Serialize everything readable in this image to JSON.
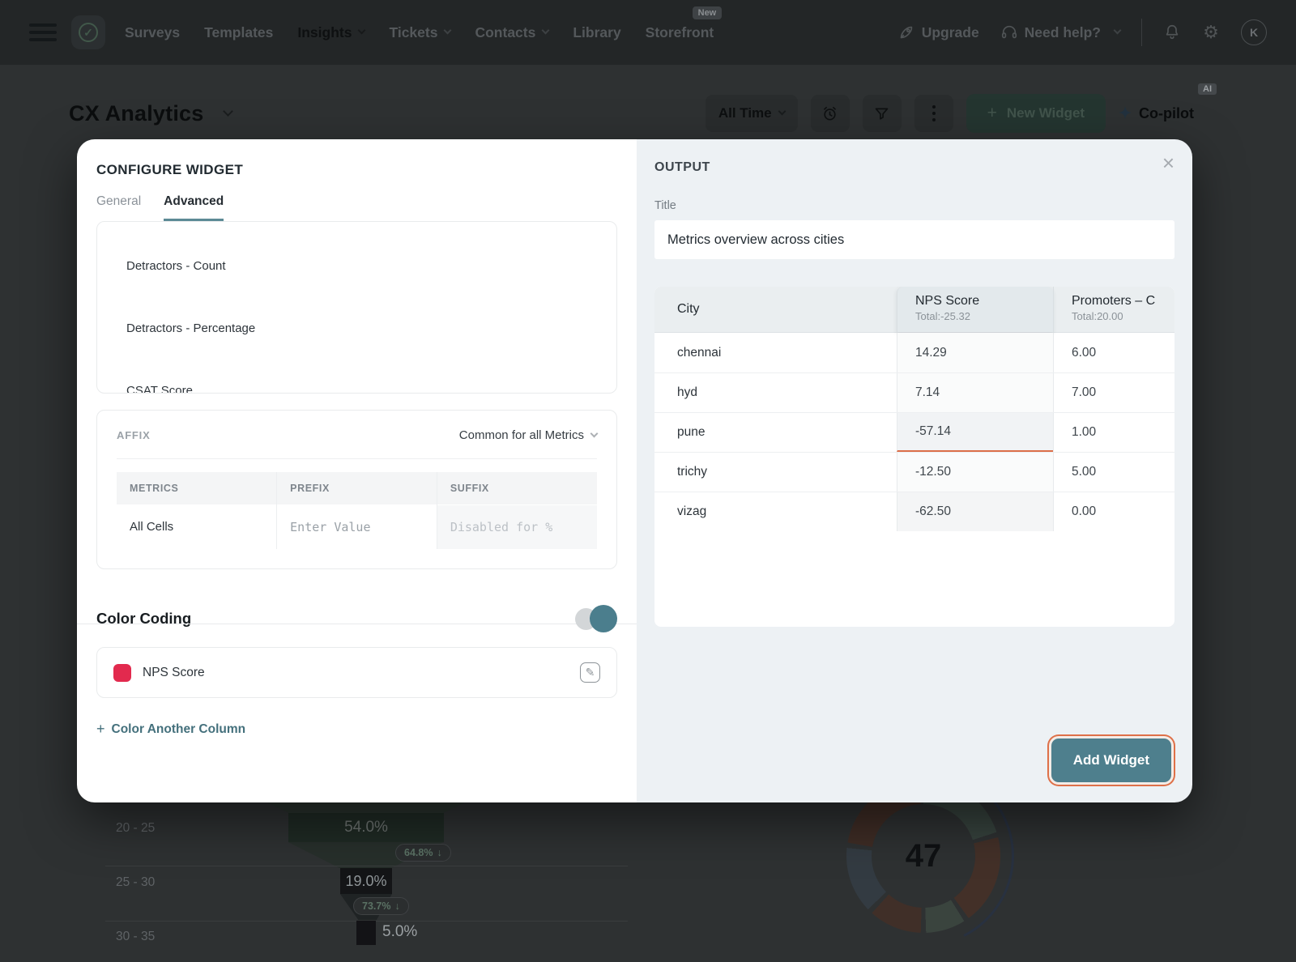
{
  "nav": {
    "items": [
      {
        "label": "Surveys"
      },
      {
        "label": "Templates"
      },
      {
        "label": "Insights",
        "chevron": true,
        "active": true
      },
      {
        "label": "Tickets",
        "chevron": true
      },
      {
        "label": "Contacts",
        "chevron": true
      },
      {
        "label": "Library"
      },
      {
        "label": "Storefront",
        "badge": "New"
      }
    ],
    "upgrade_label": "Upgrade",
    "help_label": "Need help?",
    "avatar_initial": "K"
  },
  "header": {
    "title": "CX Analytics",
    "time_range": "All Time",
    "new_widget_label": "New Widget",
    "copilot_label": "Co-pilot",
    "ai_badge": "AI"
  },
  "modal": {
    "configure": {
      "title": "CONFIGURE WIDGET",
      "tabs": {
        "general": "General",
        "advanced": "Advanced"
      },
      "active_tab": "Advanced",
      "metric_options": [
        "Detractors - Count",
        "Detractors - Percentage",
        "CSAT Score"
      ],
      "affix": {
        "label": "AFFIX",
        "scope_selector": "Common for all Metrics",
        "headers": [
          "METRICS",
          "PREFIX",
          "SUFFIX"
        ],
        "row_metric": "All Cells",
        "prefix_placeholder": "Enter Value",
        "suffix_placeholder": "Disabled for %"
      },
      "color_coding": {
        "label": "Color Coding",
        "enabled": true,
        "rule_metric": "NPS Score",
        "rule_color": "#e22a4e",
        "add_label": "Color Another Column"
      }
    },
    "output": {
      "title": "OUTPUT",
      "field_label": "Title",
      "title_value": "Metrics overview across cities",
      "table": {
        "columns": [
          {
            "label": "City"
          },
          {
            "label": "NPS Score",
            "total": "Total:-25.32"
          },
          {
            "label": "Promoters – C",
            "total": "Total:20.00"
          }
        ],
        "rows": [
          {
            "city": "chennai",
            "nps": "14.29",
            "promoters": "6.00"
          },
          {
            "city": "hyd",
            "nps": "7.14",
            "promoters": "7.00"
          },
          {
            "city": "pune",
            "nps": "-57.14",
            "promoters": "1.00",
            "selected": true
          },
          {
            "city": "trichy",
            "nps": "-12.50",
            "promoters": "5.00"
          },
          {
            "city": "vizag",
            "nps": "-62.50",
            "promoters": "0.00"
          }
        ]
      },
      "add_widget_label": "Add Widget"
    }
  },
  "background_charts": {
    "funnel": {
      "type": "bar",
      "categories": [
        "20 - 25",
        "25 - 30",
        "30 - 35"
      ],
      "values": [
        54.0,
        19.0,
        5.0
      ],
      "value_labels": [
        "54.0%",
        "19.0%",
        "5.0%"
      ],
      "drop_labels": [
        "64.8%",
        "73.7%"
      ]
    },
    "donut": {
      "type": "pie",
      "center_value": "47"
    }
  },
  "colors": {
    "accent_teal": "#4e7f8d",
    "accent_orange": "#de7048",
    "swatch_red": "#e22a4e"
  },
  "icons": {
    "check": "✓",
    "gear": "⚙",
    "close": "×",
    "plus": "+",
    "arrow_down": "↓",
    "sparkle": "✦",
    "pencil": "✎"
  }
}
